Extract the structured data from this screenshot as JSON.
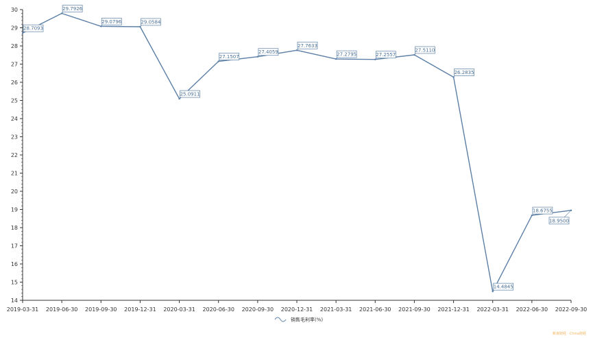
{
  "chart_data": {
    "type": "line",
    "categories": [
      "2019-03-31",
      "2019-06-30",
      "2019-09-30",
      "2019-12-31",
      "2020-03-31",
      "2020-06-30",
      "2020-09-30",
      "2020-12-31",
      "2021-03-31",
      "2021-06-30",
      "2021-09-30",
      "2021-12-31",
      "2022-03-31",
      "2022-06-30",
      "2022-09-30"
    ],
    "series": [
      {
        "name": "销售毛利率(%)",
        "values": [
          28.7093,
          29.7926,
          29.0796,
          29.0584,
          25.0911,
          27.1507,
          27.4059,
          27.7633,
          27.2795,
          27.2557,
          27.511,
          26.2835,
          14.4845,
          18.6755,
          18.95
        ],
        "labels": [
          "28.7093",
          "29.7926",
          "29.0796",
          "29.0584",
          "25.0911",
          "27.1507",
          "27.4059",
          "27.7633",
          "27.2795",
          "27.2557",
          "27.5110",
          "26.2835",
          "14.4845",
          "18.6755",
          "18.9500"
        ]
      }
    ],
    "ylim": [
      14,
      30
    ],
    "yticks": [
      "14",
      "15",
      "16",
      "17",
      "18",
      "19",
      "20",
      "21",
      "22",
      "23",
      "24",
      "25",
      "26",
      "27",
      "28",
      "29",
      "30"
    ],
    "xlabel": "",
    "ylabel": "",
    "legend": "bottom-center",
    "grid": false,
    "line_color": "#5b7fa6"
  },
  "watermark": "新浪财经 · China财经"
}
